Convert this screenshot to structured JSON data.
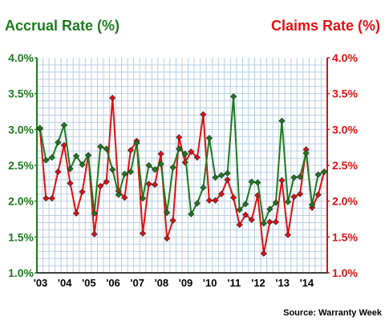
{
  "chart_data": {
    "type": "line",
    "title_left": "Accrual Rate (%)",
    "title_right": "Claims Rate (%)",
    "source": "Source: Warranty Week",
    "ylim": [
      1.0,
      4.0
    ],
    "y_ticks": [
      "1.0%",
      "1.5%",
      "2.0%",
      "2.5%",
      "3.0%",
      "3.5%",
      "4.0%"
    ],
    "y_tick_values": [
      1.0,
      1.5,
      2.0,
      2.5,
      3.0,
      3.5,
      4.0
    ],
    "x_ticks": [
      "'03",
      "'04",
      "'05",
      "'06",
      "'07",
      "'08",
      "'09",
      "'10",
      "'11",
      "'12",
      "'13",
      "'14"
    ],
    "grid": true,
    "colors": {
      "accrual": "#1e7a1e",
      "claims": "#e01010",
      "grid": "#b8cde2",
      "plot_bg": "#ffffff"
    },
    "series": [
      {
        "name": "Accrual Rate (%)",
        "axis": "left",
        "values": [
          3.02,
          2.57,
          2.61,
          2.82,
          3.06,
          2.45,
          2.63,
          2.51,
          2.64,
          1.83,
          2.76,
          2.73,
          2.44,
          2.09,
          2.38,
          2.41,
          2.81,
          2.04,
          2.5,
          2.44,
          2.52,
          1.84,
          2.47,
          2.73,
          2.66,
          1.82,
          1.97,
          2.19,
          2.88,
          2.33,
          2.36,
          2.39,
          3.46,
          1.88,
          1.96,
          2.27,
          2.26,
          1.69,
          1.89,
          1.98,
          3.12,
          1.99,
          2.33,
          2.34,
          2.67,
          1.95,
          2.37,
          2.41
        ]
      },
      {
        "name": "Claims Rate (%)",
        "axis": "right",
        "values": [
          3.01,
          2.04,
          2.04,
          2.41,
          2.78,
          2.25,
          1.83,
          2.13,
          2.64,
          1.54,
          2.21,
          2.27,
          3.44,
          2.14,
          2.05,
          2.71,
          2.84,
          1.55,
          2.24,
          2.23,
          2.66,
          1.48,
          1.73,
          2.89,
          2.54,
          2.69,
          2.61,
          3.21,
          2.01,
          2.01,
          2.1,
          2.3,
          2.05,
          1.67,
          1.81,
          1.74,
          2.08,
          1.27,
          1.71,
          1.71,
          2.29,
          1.53,
          2.06,
          2.1,
          2.72,
          1.91,
          2.09,
          2.41
        ]
      }
    ]
  }
}
